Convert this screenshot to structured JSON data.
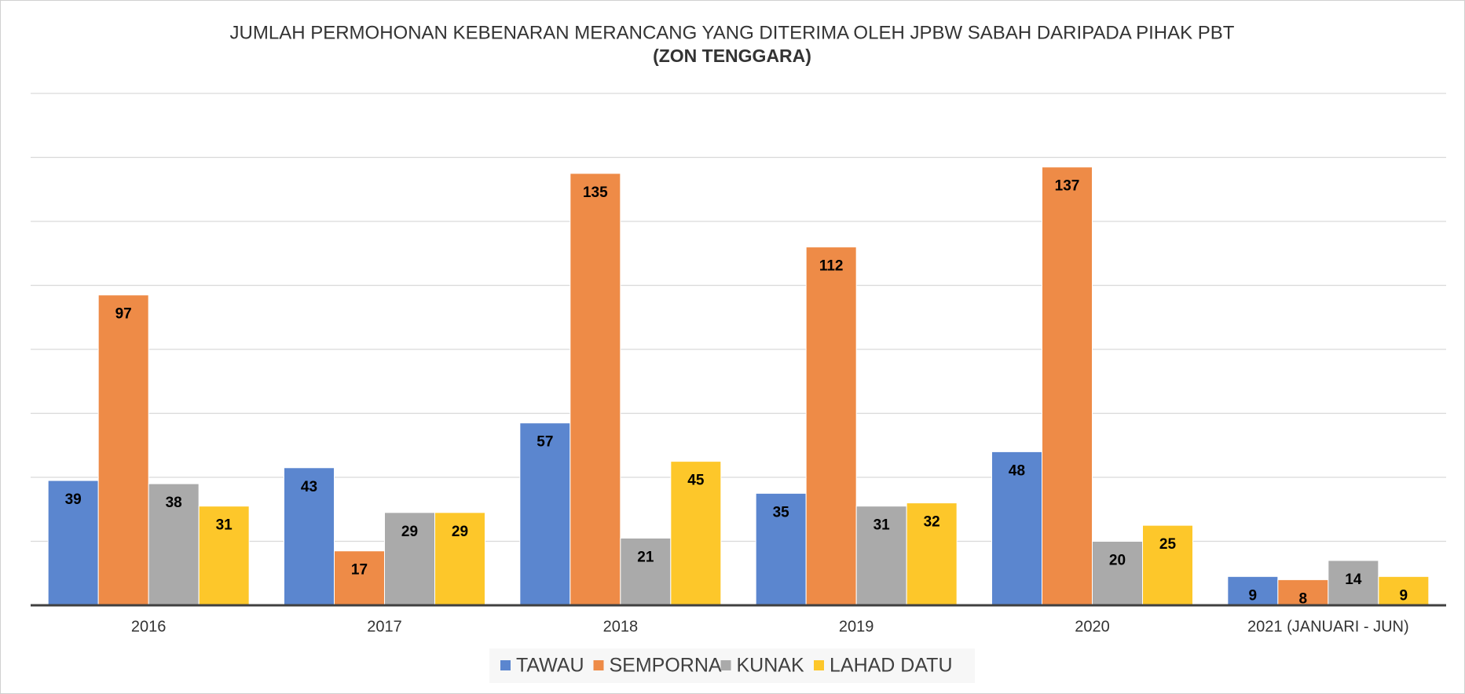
{
  "chart_data": {
    "type": "bar",
    "title": "JUMLAH PERMOHONAN KEBENARAN MERANCANG YANG DITERIMA OLEH JPBW SABAH DARIPADA PIHAK PBT",
    "subtitle": "(ZON TENGGARA)",
    "categories": [
      "2016",
      "2017",
      "2018",
      "2019",
      "2020",
      "2021 (JANUARI - JUN)"
    ],
    "series": [
      {
        "name": "TAWAU",
        "color": "#5b86cf",
        "values": [
          39,
          43,
          57,
          35,
          48,
          9
        ]
      },
      {
        "name": "SEMPORNA",
        "color": "#ee8b47",
        "values": [
          97,
          17,
          135,
          112,
          137,
          8
        ]
      },
      {
        "name": "KUNAK",
        "color": "#aaaaaa",
        "values": [
          38,
          29,
          21,
          31,
          20,
          14
        ]
      },
      {
        "name": "LAHAD DATU",
        "color": "#fdc72a",
        "values": [
          31,
          29,
          45,
          32,
          25,
          9
        ]
      }
    ],
    "ylim": [
      0,
      160
    ],
    "yticks": [
      0,
      20,
      40,
      60,
      80,
      100,
      120,
      140,
      160
    ],
    "grid": true
  }
}
